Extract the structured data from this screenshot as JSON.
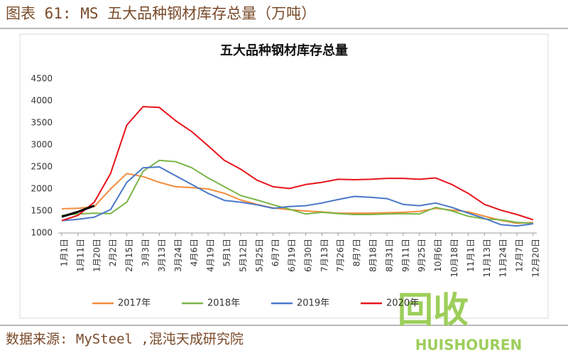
{
  "header": "图表 61: MS 五大品种钢材库存总量（万吨）",
  "footer": "数据来源: MySteel ,混沌天成研究院",
  "watermark": {
    "text": "回收",
    "subtext": "HUISHOUREN"
  },
  "chart_data": {
    "type": "line",
    "title": "五大品种钢材库存总量",
    "categories": [
      "1月1日",
      "1月11日",
      "1月20日",
      "2月2日",
      "2月15日",
      "3月3日",
      "3月13日",
      "3月24日",
      "4月6日",
      "4月19日",
      "5月1日",
      "5月12日",
      "5月25日",
      "6月7日",
      "6月19日",
      "6月30日",
      "7月13日",
      "7月26日",
      "8月7日",
      "8月18日",
      "8月31日",
      "9月11日",
      "9月25日",
      "10月6日",
      "10月18日",
      "11月1日",
      "11月13日",
      "11月24日",
      "12月7日",
      "12月20日"
    ],
    "series": [
      {
        "name": "2017年",
        "color": "#f28c3c",
        "values": [
          1550,
          1560,
          1600,
          2000,
          2350,
          2280,
          2150,
          2050,
          2030,
          2000,
          1900,
          1750,
          1650,
          1570,
          1530,
          1500,
          1480,
          1450,
          1450,
          1450,
          1460,
          1470,
          1490,
          1560,
          1520,
          1480,
          1380,
          1290,
          1220,
          1240
        ]
      },
      {
        "name": "2018年",
        "color": "#7ab648",
        "values": [
          1400,
          1430,
          1450,
          1440,
          1700,
          2400,
          2650,
          2620,
          2480,
          2250,
          2050,
          1850,
          1750,
          1640,
          1540,
          1430,
          1470,
          1440,
          1420,
          1420,
          1430,
          1440,
          1430,
          1580,
          1500,
          1380,
          1320,
          1300,
          1240,
          1220
        ]
      },
      {
        "name": "2019年",
        "color": "#4a78c8",
        "values": [
          1280,
          1310,
          1360,
          1530,
          2150,
          2480,
          2500,
          2300,
          2100,
          1900,
          1740,
          1700,
          1640,
          1560,
          1600,
          1620,
          1680,
          1760,
          1830,
          1810,
          1780,
          1650,
          1620,
          1680,
          1580,
          1450,
          1330,
          1190,
          1160,
          1210
        ]
      },
      {
        "name": "2020年",
        "color": "#e8141c",
        "values": [
          1280,
          1400,
          1700,
          2350,
          3450,
          3870,
          3850,
          3550,
          3300,
          2980,
          2650,
          2450,
          2200,
          2050,
          2010,
          2100,
          2150,
          2220,
          2210,
          2220,
          2240,
          2240,
          2220,
          2250,
          2100,
          1900,
          1650,
          1520,
          1420,
          1300
        ]
      },
      {
        "name": null,
        "color": "#000000",
        "values": [
          1370,
          1480,
          1620,
          null,
          null,
          null,
          null,
          null,
          null,
          null,
          null,
          null,
          null,
          null,
          null,
          null,
          null,
          null,
          null,
          null,
          null,
          null,
          null,
          null,
          null,
          null,
          null,
          null,
          null,
          null
        ]
      }
    ],
    "ylim": [
      1000,
      4500
    ],
    "yticks": [
      1000,
      1500,
      2000,
      2500,
      3000,
      3500,
      4000,
      4500
    ],
    "legend": "bottom"
  }
}
